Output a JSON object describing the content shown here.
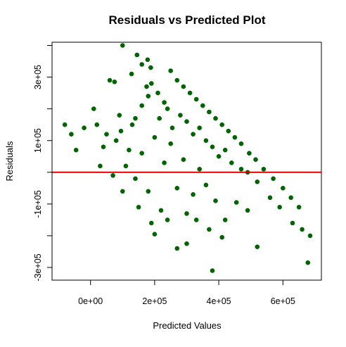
{
  "chart_data": {
    "type": "scatter",
    "title": "Residuals vs Predicted Plot",
    "xlabel": "Predicted Values",
    "ylabel": "Residuals",
    "xlim": [
      -120000,
      720000
    ],
    "ylim": [
      -340000,
      410000
    ],
    "x_ticks": [
      0,
      200000,
      400000,
      600000
    ],
    "x_tick_labels": [
      "0e+00",
      "2e+05",
      "4e+05",
      "6e+05"
    ],
    "y_ticks": [
      -300000,
      -200000,
      -100000,
      0,
      100000,
      200000,
      300000,
      400000
    ],
    "y_tick_labels": [
      "-3e+05",
      "",
      "-1e+05",
      "",
      "1e+05",
      "",
      "3e+05",
      ""
    ],
    "grid": false,
    "point_color": "#006400",
    "reference_line": {
      "y": 0,
      "color": "#e00000"
    },
    "series": [
      {
        "values": [
          [
            100000,
            400000
          ],
          [
            145000,
            370000
          ],
          [
            160000,
            340000
          ],
          [
            60000,
            290000
          ],
          [
            75000,
            285000
          ],
          [
            128000,
            310000
          ],
          [
            178000,
            355000
          ],
          [
            188000,
            330000
          ],
          [
            210000,
            250000
          ],
          [
            175000,
            270000
          ],
          [
            -80000,
            150000
          ],
          [
            -60000,
            120000
          ],
          [
            -45000,
            70000
          ],
          [
            10000,
            200000
          ],
          [
            -20000,
            140000
          ],
          [
            20000,
            150000
          ],
          [
            50000,
            120000
          ],
          [
            90000,
            180000
          ],
          [
            130000,
            150000
          ],
          [
            190000,
            280000
          ],
          [
            230000,
            220000
          ],
          [
            240000,
            200000
          ],
          [
            280000,
            180000
          ],
          [
            300000,
            160000
          ],
          [
            320000,
            120000
          ],
          [
            340000,
            140000
          ],
          [
            360000,
            100000
          ],
          [
            380000,
            80000
          ],
          [
            400000,
            50000
          ],
          [
            420000,
            70000
          ],
          [
            440000,
            30000
          ],
          [
            470000,
            10000
          ],
          [
            490000,
            0
          ],
          [
            520000,
            -30000
          ],
          [
            560000,
            -80000
          ],
          [
            590000,
            -110000
          ],
          [
            630000,
            -160000
          ],
          [
            660000,
            -180000
          ],
          [
            685000,
            -200000
          ],
          [
            678000,
            -285000
          ],
          [
            380000,
            -310000
          ],
          [
            520000,
            -235000
          ],
          [
            410000,
            -205000
          ],
          [
            300000,
            -225000
          ],
          [
            270000,
            -240000
          ],
          [
            200000,
            -195000
          ],
          [
            190000,
            -160000
          ],
          [
            150000,
            -110000
          ],
          [
            100000,
            -60000
          ],
          [
            70000,
            -10000
          ],
          [
            30000,
            20000
          ],
          [
            40000,
            80000
          ],
          [
            80000,
            100000
          ],
          [
            120000,
            70000
          ],
          [
            160000,
            60000
          ],
          [
            200000,
            110000
          ],
          [
            250000,
            90000
          ],
          [
            290000,
            40000
          ],
          [
            340000,
            10000
          ],
          [
            360000,
            -40000
          ],
          [
            390000,
            -90000
          ],
          [
            300000,
            -130000
          ],
          [
            240000,
            -150000
          ],
          [
            220000,
            -120000
          ],
          [
            180000,
            -60000
          ],
          [
            140000,
            -20000
          ],
          [
            110000,
            20000
          ],
          [
            230000,
            30000
          ],
          [
            270000,
            -50000
          ],
          [
            320000,
            -70000
          ],
          [
            330000,
            -150000
          ],
          [
            455000,
            -95000
          ],
          [
            490000,
            -120000
          ],
          [
            370000,
            -180000
          ],
          [
            420000,
            -150000
          ],
          [
            250000,
            320000
          ],
          [
            270000,
            290000
          ],
          [
            290000,
            270000
          ],
          [
            310000,
            250000
          ],
          [
            330000,
            230000
          ],
          [
            350000,
            210000
          ],
          [
            370000,
            190000
          ],
          [
            390000,
            170000
          ],
          [
            410000,
            150000
          ],
          [
            430000,
            130000
          ],
          [
            450000,
            110000
          ],
          [
            470000,
            90000
          ],
          [
            495000,
            60000
          ],
          [
            515000,
            40000
          ],
          [
            540000,
            10000
          ],
          [
            570000,
            -20000
          ],
          [
            600000,
            -50000
          ],
          [
            625000,
            -80000
          ],
          [
            650000,
            -110000
          ],
          [
            180000,
            240000
          ],
          [
            160000,
            210000
          ],
          [
            140000,
            170000
          ],
          [
            215000,
            170000
          ],
          [
            255000,
            140000
          ],
          [
            95000,
            130000
          ]
        ]
      }
    ]
  }
}
